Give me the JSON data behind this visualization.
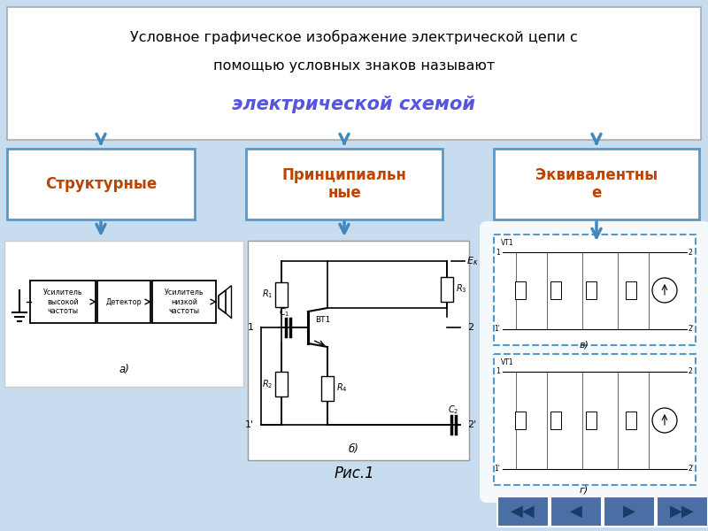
{
  "title_line1": "Условное графическое изображение электрической цепи с",
  "title_line2": "помощью условных знаков называют",
  "title_line3": "электрической схемой",
  "title_line3_color": "#5555DD",
  "box_labels": [
    "Структурные",
    "Принципиальн\nные",
    "Эквивалентны\nе"
  ],
  "box_label_color": "#BB4400",
  "box_border_color": "#5599CC",
  "box_bg_color": "#FFFFFF",
  "arrow_color": "#4488BB",
  "caption": "Рис.1",
  "nav_button_bg": "#4A6FA5",
  "bg_color": "#C8DCF0",
  "title_box_bg": "#FFFFFF",
  "title_box_border": "#AAAAAA",
  "diagram_bg": "#FFFFFF",
  "diagram_border": "#888888"
}
